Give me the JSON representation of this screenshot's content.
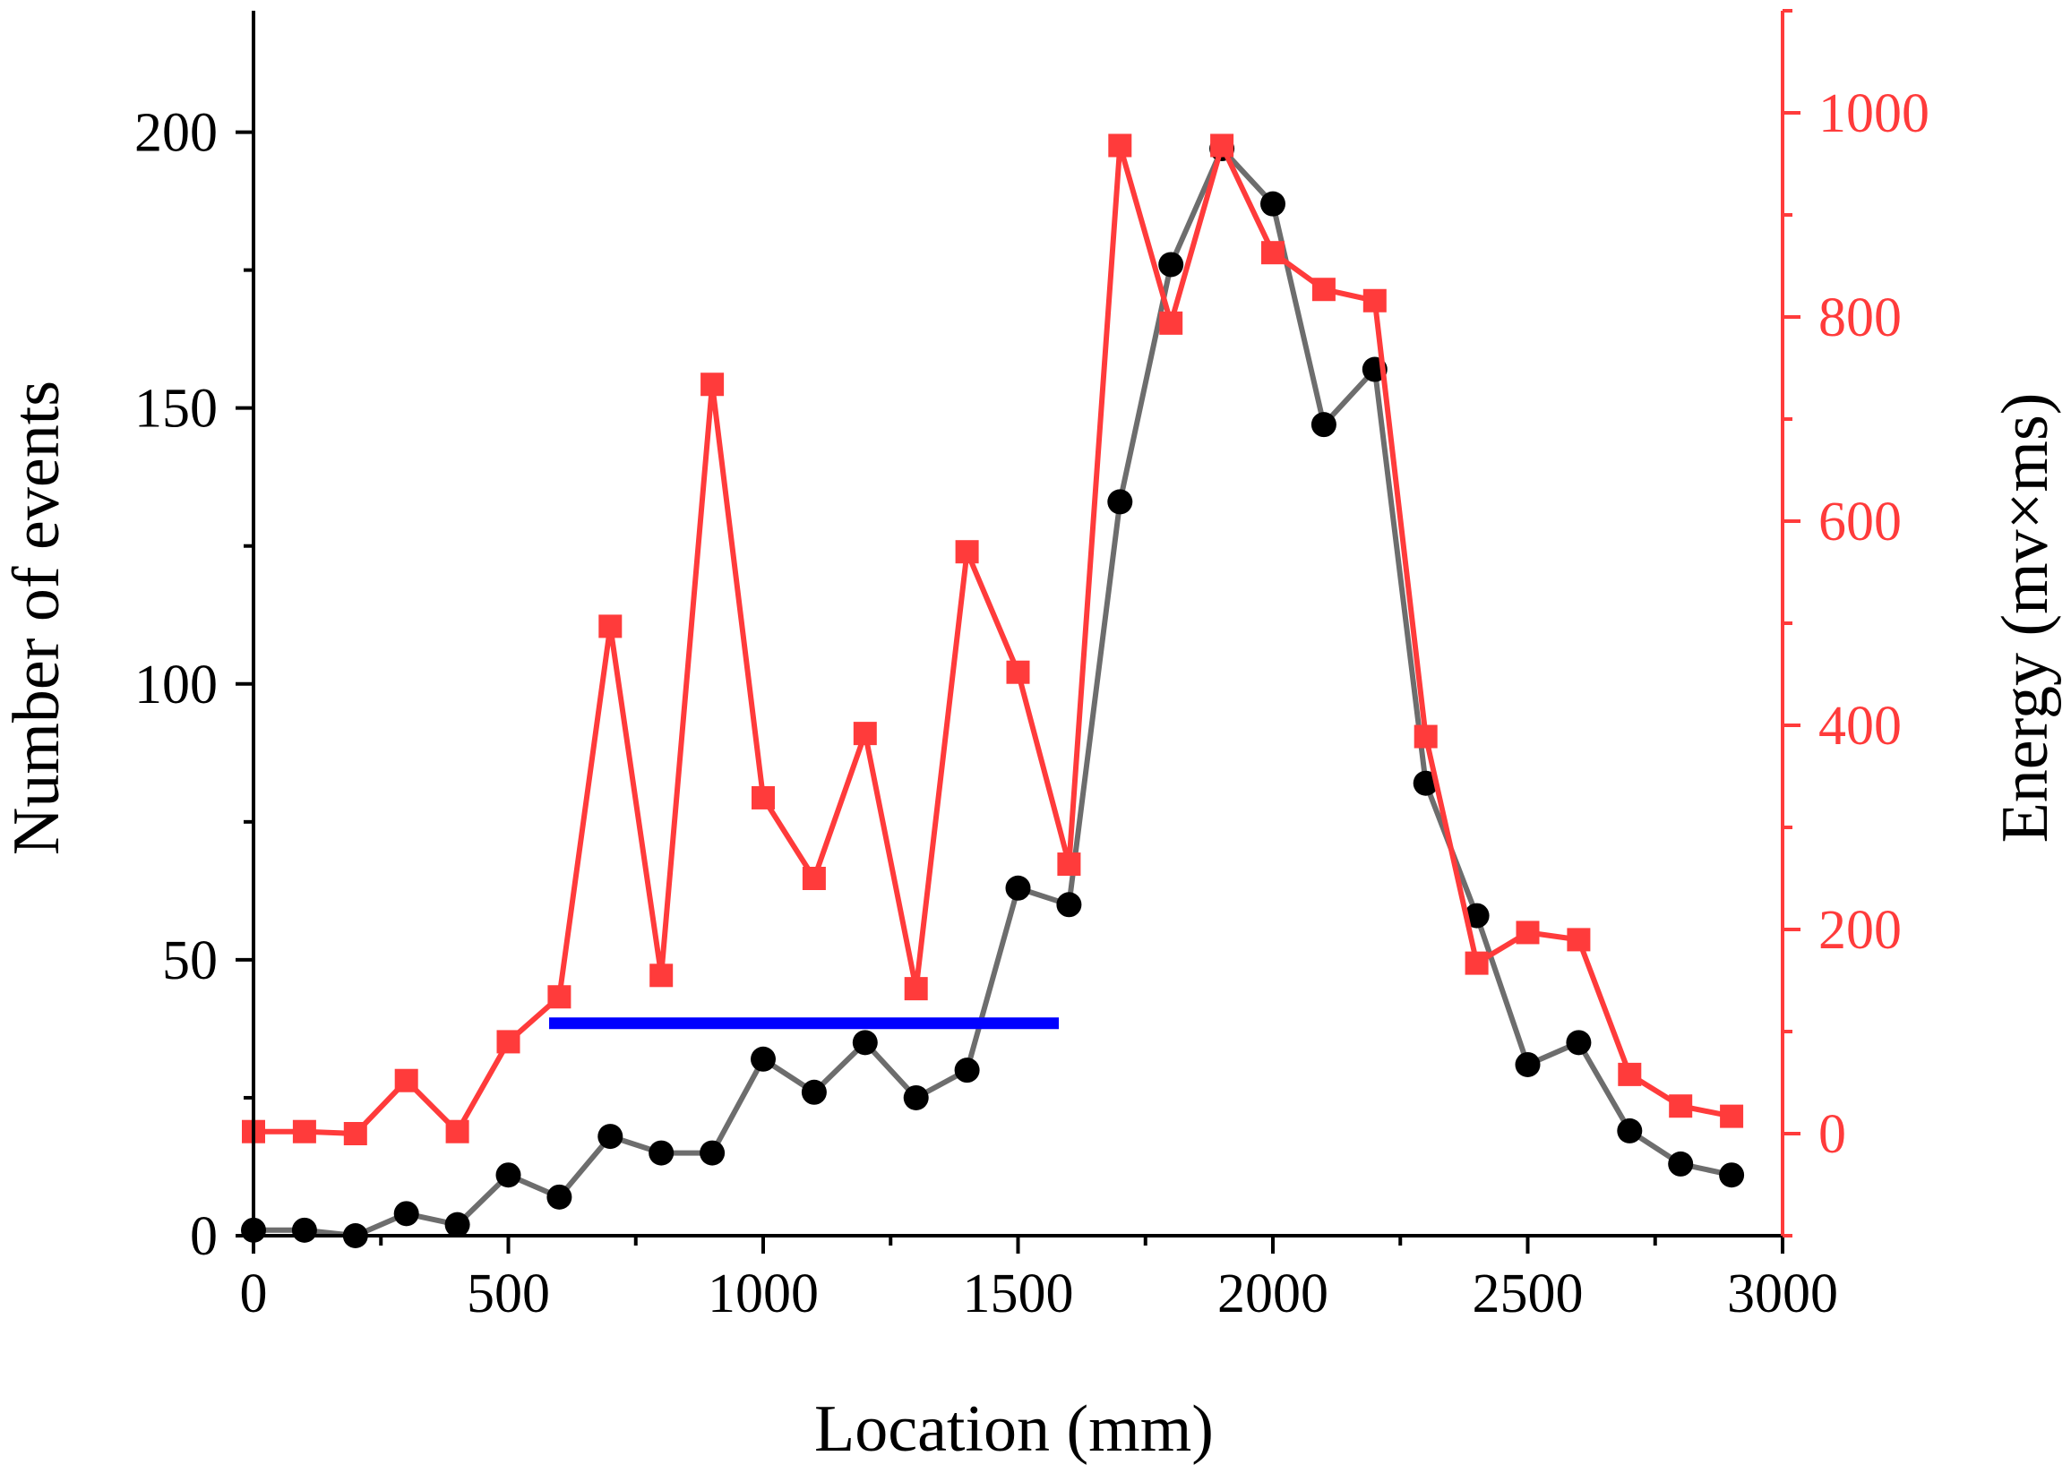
{
  "chart_data": {
    "type": "line",
    "xlabel": "Location (mm)",
    "ylabel": "Number of events",
    "y2label": "Energy (mv×ms)",
    "xlim": [
      0,
      3000
    ],
    "ylim": [
      0,
      222
    ],
    "y2lim": [
      -100,
      1100
    ],
    "x_ticks": [
      0,
      500,
      1000,
      1500,
      2000,
      2500,
      3000
    ],
    "y_ticks": [
      0,
      50,
      100,
      150,
      200
    ],
    "y2_ticks": [
      0,
      200,
      400,
      600,
      800,
      1000
    ],
    "series": [
      {
        "name": "Number of events",
        "axis": "left",
        "color": "#6d6d6d",
        "marker_color": "#000000",
        "marker": "circle",
        "x": [
          0,
          100,
          200,
          300,
          400,
          500,
          600,
          700,
          800,
          900,
          1000,
          1100,
          1200,
          1300,
          1400,
          1500,
          1600,
          1700,
          1800,
          1900,
          2000,
          2100,
          2200,
          2300,
          2400,
          2500,
          2600,
          2700,
          2800,
          2900
        ],
        "values": [
          1,
          1,
          0,
          4,
          2,
          11,
          7,
          18,
          15,
          15,
          32,
          26,
          35,
          25,
          30,
          63,
          60,
          133,
          176,
          197,
          187,
          147,
          157,
          82,
          58,
          31,
          35,
          19,
          13,
          11
        ]
      },
      {
        "name": "Energy",
        "axis": "right",
        "color": "#ff3b3b",
        "marker_color": "#ff3b3b",
        "marker": "square",
        "x": [
          0,
          100,
          200,
          300,
          400,
          500,
          600,
          700,
          800,
          900,
          1000,
          1100,
          1200,
          1300,
          1400,
          1500,
          1600,
          1700,
          1800,
          1900,
          2000,
          2100,
          2200,
          2300,
          2400,
          2500,
          2600,
          2700,
          2800,
          2900
        ],
        "values": [
          2,
          2,
          0,
          52,
          2,
          90,
          134,
          497,
          155,
          734,
          329,
          250,
          392,
          142,
          570,
          452,
          264,
          968,
          794,
          968,
          863,
          827,
          816,
          389,
          167,
          197,
          190,
          58,
          27,
          17
        ]
      }
    ],
    "annotations": [
      {
        "type": "horizontal-bar",
        "color": "#0000ff",
        "x_start": 580,
        "x_end": 1580,
        "y": 38.5,
        "axis": "left"
      }
    ]
  }
}
